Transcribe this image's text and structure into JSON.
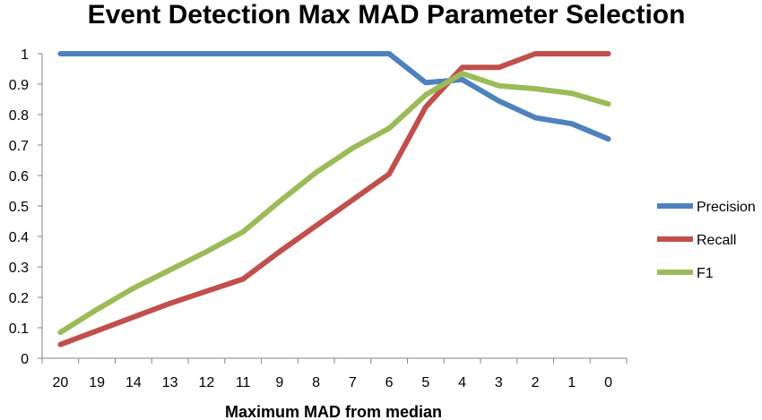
{
  "chart_data": {
    "type": "line",
    "title": "Event Detection Max MAD Parameter Selection",
    "xlabel": "Maximum MAD from median",
    "ylabel": "",
    "categories": [
      "20",
      "19",
      "14",
      "13",
      "12",
      "11",
      "9",
      "8",
      "7",
      "6",
      "5",
      "4",
      "3",
      "2",
      "1",
      "0"
    ],
    "ylim": [
      0,
      1
    ],
    "yticks": [
      "0",
      "0.1",
      "0.2",
      "0.3",
      "0.4",
      "0.5",
      "0.6",
      "0.7",
      "0.8",
      "0.9",
      "1"
    ],
    "legend_position": "right",
    "series": [
      {
        "name": "Precision",
        "color": "#4f81bd",
        "values": [
          1,
          1,
          1,
          1,
          1,
          1,
          1,
          1,
          1,
          1,
          0.905,
          0.915,
          0.845,
          0.79,
          0.77,
          0.72
        ]
      },
      {
        "name": "Recall",
        "color": "#c0504d",
        "values": [
          0.045,
          0.09,
          0.135,
          0.18,
          0.22,
          0.26,
          0.35,
          0.435,
          0.52,
          0.605,
          0.825,
          0.955,
          0.955,
          1,
          1,
          1
        ]
      },
      {
        "name": "F1",
        "color": "#9bbb59",
        "values": [
          0.085,
          0.16,
          0.23,
          0.29,
          0.35,
          0.415,
          0.515,
          0.61,
          0.69,
          0.755,
          0.865,
          0.935,
          0.895,
          0.885,
          0.87,
          0.835
        ]
      }
    ]
  }
}
